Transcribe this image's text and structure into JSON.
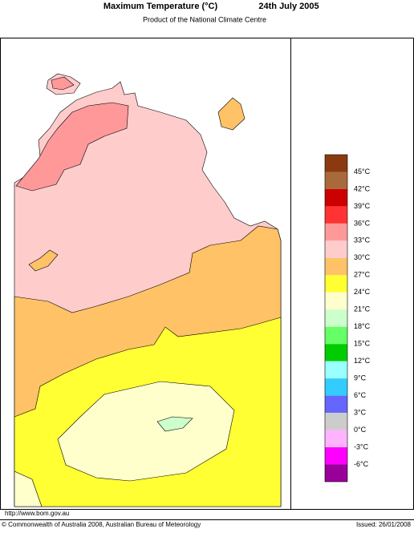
{
  "header": {
    "title": "Maximum Temperature (°C)",
    "date": "24th July 2005",
    "subtitle": "Product of the National Climate Centre"
  },
  "legend": {
    "colors": [
      "#8b3a0f",
      "#a86a3c",
      "#cc0000",
      "#ff3333",
      "#ff9999",
      "#ffcccc",
      "#ffc266",
      "#ffff33",
      "#ffffcc",
      "#ccffcc",
      "#66ff66",
      "#00cc00",
      "#99ffff",
      "#33ccff",
      "#6666ff",
      "#cccccc",
      "#ffb3ff",
      "#ff00ff",
      "#990099"
    ],
    "labels": [
      "45°C",
      "42°C",
      "39°C",
      "36°C",
      "33°C",
      "30°C",
      "27°C",
      "24°C",
      "21°C",
      "18°C",
      "15°C",
      "12°C",
      "9°C",
      "6°C",
      "3°C",
      "0°C",
      "-3°C",
      "-6°C"
    ]
  },
  "footer": {
    "url": "http://www.bom.gov.au",
    "copyright": "© Commonwealth of Australia 2008, Australian Bureau of Meteorology",
    "issued": "Issued: 26/01/2008"
  }
}
